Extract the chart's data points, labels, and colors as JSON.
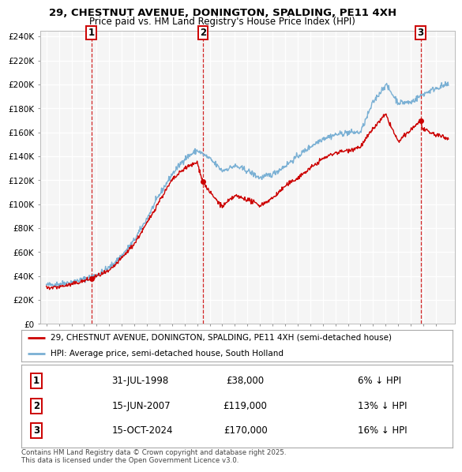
{
  "title1": "29, CHESTNUT AVENUE, DONINGTON, SPALDING, PE11 4XH",
  "title2": "Price paid vs. HM Land Registry's House Price Index (HPI)",
  "ylabel_ticks": [
    "£0",
    "£20K",
    "£40K",
    "£60K",
    "£80K",
    "£100K",
    "£120K",
    "£140K",
    "£160K",
    "£180K",
    "£200K",
    "£220K",
    "£240K"
  ],
  "ytick_values": [
    0,
    20000,
    40000,
    60000,
    80000,
    100000,
    120000,
    140000,
    160000,
    180000,
    200000,
    220000,
    240000
  ],
  "ylim": [
    0,
    245000
  ],
  "xlim_start": 1994.5,
  "xlim_end": 2027.5,
  "sale_dates": [
    1998.58,
    2007.46,
    2024.79
  ],
  "sale_prices": [
    38000,
    119000,
    170000
  ],
  "sale_labels": [
    "1",
    "2",
    "3"
  ],
  "sale_date_strs": [
    "31-JUL-1998",
    "15-JUN-2007",
    "15-OCT-2024"
  ],
  "sale_price_strs": [
    "£38,000",
    "£119,000",
    "£170,000"
  ],
  "sale_hpi_strs": [
    "6% ↓ HPI",
    "13% ↓ HPI",
    "16% ↓ HPI"
  ],
  "legend_line1": "29, CHESTNUT AVENUE, DONINGTON, SPALDING, PE11 4XH (semi-detached house)",
  "legend_line2": "HPI: Average price, semi-detached house, South Holland",
  "footnote": "Contains HM Land Registry data © Crown copyright and database right 2025.\nThis data is licensed under the Open Government Licence v3.0.",
  "line_color_red": "#cc0000",
  "line_color_blue": "#7ab0d4",
  "bg_color": "#f0f0f0",
  "chart_bg_color": "#f5f5f5",
  "grid_color": "#ffffff",
  "vline_color": "#cc0000",
  "hpi_anchors_x": [
    1995,
    1996,
    1997,
    1998,
    1999,
    2000,
    2001,
    2002,
    2003,
    2004,
    2005,
    2006,
    2007,
    2008,
    2009,
    2010,
    2011,
    2012,
    2013,
    2014,
    2015,
    2016,
    2017,
    2018,
    2019,
    2020,
    2021,
    2022,
    2023,
    2024,
    2025,
    2026,
    2027
  ],
  "hpi_anchors_y": [
    32500,
    33500,
    35000,
    37500,
    41000,
    47000,
    57000,
    70000,
    88000,
    108000,
    125000,
    138000,
    145000,
    138000,
    128000,
    132000,
    128000,
    122000,
    125000,
    132000,
    140000,
    148000,
    155000,
    158000,
    160000,
    160000,
    185000,
    200000,
    185000,
    185000,
    192000,
    197000,
    200000
  ],
  "price_anchors_x": [
    1995,
    1996,
    1997,
    1998,
    1998.58,
    1999,
    2000,
    2001,
    2002,
    2003,
    2004,
    2005,
    2006,
    2007,
    2007.46,
    2008,
    2009,
    2010,
    2011,
    2012,
    2013,
    2014,
    2015,
    2016,
    2017,
    2018,
    2019,
    2020,
    2021,
    2022,
    2023,
    2024,
    2024.79,
    2025,
    2026,
    2027
  ],
  "price_anchors_y": [
    30000,
    31000,
    33000,
    36000,
    38000,
    40000,
    44000,
    55000,
    67000,
    84000,
    103000,
    120000,
    130000,
    135000,
    119000,
    110000,
    98000,
    107000,
    104000,
    99000,
    105000,
    115000,
    122000,
    130000,
    138000,
    143000,
    145000,
    148000,
    163000,
    175000,
    152000,
    162000,
    170000,
    162000,
    158000,
    155000
  ]
}
